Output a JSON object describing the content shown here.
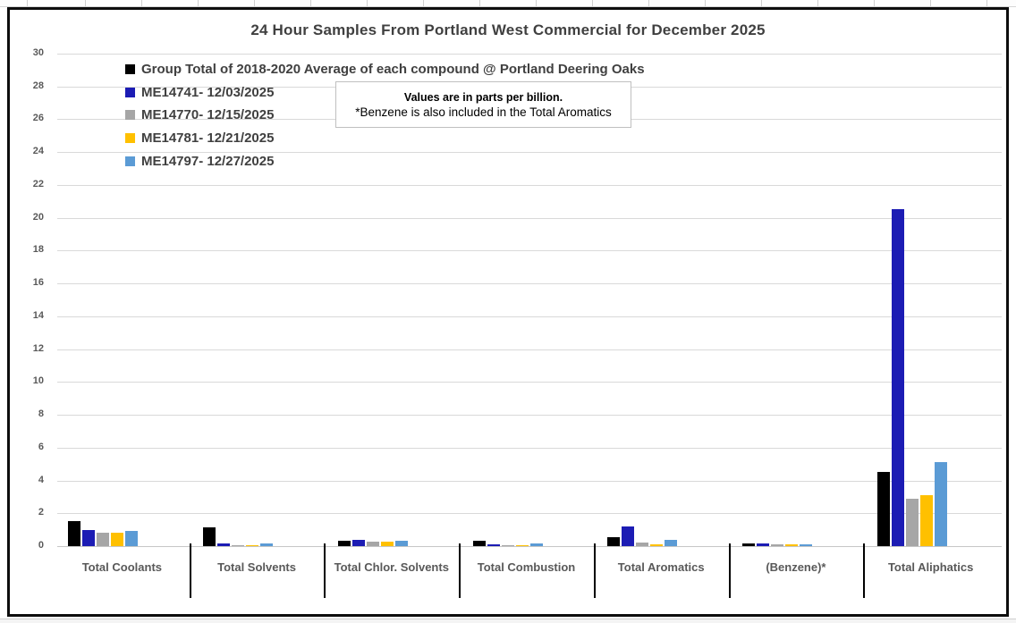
{
  "chart": {
    "title": "24 Hour Samples From Portland West Commercial for December 2025",
    "note_line1": "Values are in parts per billion.",
    "note_line2": "*Benzene is also included in the Total Aromatics"
  },
  "chart_data": {
    "type": "bar",
    "title": "24 Hour Samples From Portland West Commercial for December 2025",
    "units_note": "Values are in parts per billion.",
    "footnote": "*Benzene is also included in the Total Aromatics",
    "categories": [
      "Total Coolants",
      "Total Solvents",
      "Total Chlor. Solvents",
      "Total Combustion",
      "Total Aromatics",
      "(Benzene)*",
      "Total Aliphatics"
    ],
    "series": [
      {
        "name": "Group Total of 2018-2020 Average of each compound @ Portland Deering Oaks",
        "color": "#000000",
        "values": [
          1.5,
          1.15,
          0.35,
          0.3,
          0.55,
          0.15,
          4.5
        ]
      },
      {
        "name": "ME14741- 12/03/2025",
        "color": "#1c1cb4",
        "values": [
          1.0,
          0.15,
          0.4,
          0.1,
          1.2,
          0.15,
          20.5
        ]
      },
      {
        "name": "ME14770- 12/15/2025",
        "color": "#a6a6a6",
        "values": [
          0.8,
          0.08,
          0.25,
          0.02,
          0.2,
          0.1,
          2.9
        ]
      },
      {
        "name": "ME14781- 12/21/2025",
        "color": "#ffc000",
        "values": [
          0.8,
          0.08,
          0.25,
          0.02,
          0.1,
          0.1,
          3.1
        ]
      },
      {
        "name": "ME14797- 12/27/2025",
        "color": "#5b9bd5",
        "values": [
          0.9,
          0.15,
          0.3,
          0.15,
          0.4,
          0.12,
          5.1
        ]
      }
    ],
    "ylim": [
      0,
      30
    ],
    "yticks": [
      0,
      2,
      4,
      6,
      8,
      10,
      12,
      14,
      16,
      18,
      20,
      22,
      24,
      26,
      28,
      30
    ],
    "grid": true,
    "legend_position": "top-left-inside",
    "ylabel": "",
    "xlabel": ""
  }
}
